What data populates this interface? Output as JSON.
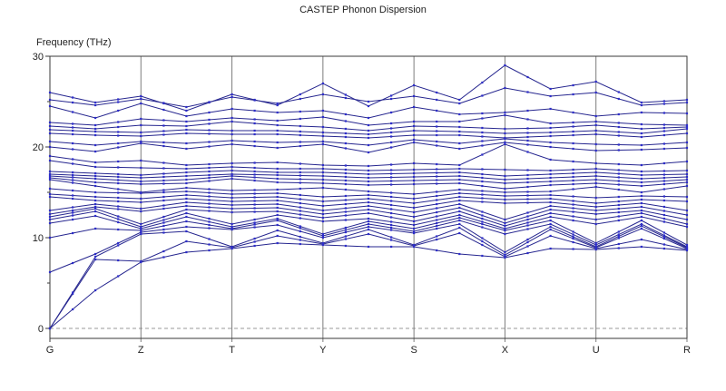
{
  "chart_data": {
    "type": "line",
    "title": "CASTEP Phonon Dispersion",
    "ylabel": "Frequency (THz)",
    "xlabel": "",
    "ylim": [
      0,
      30
    ],
    "yticks_major": [
      0,
      10,
      20,
      30
    ],
    "yticks_minor": [
      5,
      15,
      25
    ],
    "grid": "vertical lines at high-symmetry points",
    "legend": "none",
    "zero_line_style": "dashed horizontal at 0 THz",
    "x_symmetry_points": [
      "G",
      "Z",
      "T",
      "Y",
      "S",
      "X",
      "U",
      "R"
    ],
    "x_mapping": "each band has 15 values: even indices fall on the 8 symmetry points G,Z,T,Y,S,X,U,R; odd indices are segment midpoints",
    "bands_unit": "THz",
    "line_color": "#26268f",
    "marker_color": "#2d2dc9",
    "gridline_color": "#7d7d7d",
    "frame_color": "#3a3a3a",
    "zero_line_color": "#999999",
    "bands": [
      [
        0,
        4.2,
        7.3,
        8.4,
        8.8,
        9.4,
        9.2,
        9.0,
        9.0,
        8.2,
        7.8,
        8.8,
        8.7,
        9.0,
        8.6
      ],
      [
        0,
        7.6,
        7.4,
        9.6,
        8.9,
        10.2,
        9.3,
        10.4,
        9.1,
        10.5,
        7.9,
        10.2,
        8.8,
        9.8,
        8.7
      ],
      [
        0,
        7.9,
        10.4,
        10.7,
        9.0,
        10.8,
        9.4,
        10.9,
        9.2,
        11.1,
        8.1,
        10.9,
        8.9,
        11.0,
        8.8
      ],
      [
        6.2,
        8.2,
        10.6,
        11.2,
        10.9,
        11.4,
        10.0,
        11.2,
        10.5,
        11.5,
        8.4,
        11.2,
        9.0,
        11.3,
        8.9
      ],
      [
        10.0,
        11.0,
        10.8,
        11.8,
        11.0,
        11.9,
        10.2,
        11.5,
        10.7,
        11.9,
        10.4,
        11.5,
        9.2,
        11.5,
        9.0
      ],
      [
        11.6,
        12.4,
        11.0,
        12.3,
        11.2,
        12.1,
        10.4,
        11.8,
        11.0,
        12.2,
        10.8,
        11.9,
        9.4,
        11.9,
        9.2
      ],
      [
        12.0,
        12.9,
        11.2,
        12.7,
        11.5,
        12.5,
        11.8,
        12.1,
        11.4,
        12.5,
        11.0,
        12.3,
        11.5,
        12.3,
        11.2
      ],
      [
        12.3,
        13.2,
        11.5,
        13.1,
        12.8,
        12.9,
        12.2,
        12.7,
        11.8,
        12.9,
        11.3,
        12.7,
        12.0,
        12.7,
        11.5
      ],
      [
        12.6,
        13.4,
        12.9,
        13.5,
        13.2,
        13.3,
        12.6,
        13.1,
        12.3,
        13.3,
        11.6,
        13.1,
        12.6,
        13.0,
        12.0
      ],
      [
        13.0,
        13.7,
        13.2,
        13.9,
        13.6,
        13.7,
        13.0,
        13.5,
        12.8,
        13.7,
        12.0,
        13.5,
        13.0,
        13.4,
        12.5
      ],
      [
        14.5,
        14.1,
        13.9,
        14.3,
        14.0,
        14.1,
        13.5,
        13.9,
        13.3,
        14.1,
        13.8,
        13.9,
        13.4,
        13.8,
        13.0
      ],
      [
        14.8,
        14.5,
        14.3,
        14.7,
        14.4,
        14.5,
        14.0,
        14.3,
        13.8,
        14.5,
        14.2,
        14.3,
        13.8,
        14.2,
        14.0
      ],
      [
        15.4,
        15.0,
        14.9,
        15.1,
        14.8,
        14.9,
        14.5,
        14.7,
        14.3,
        14.9,
        14.6,
        14.7,
        14.4,
        14.6,
        14.5
      ],
      [
        16.4,
        15.7,
        15.0,
        15.5,
        15.2,
        15.3,
        15.5,
        15.1,
        14.8,
        15.3,
        15.0,
        15.1,
        15.6,
        15.0,
        15.7
      ],
      [
        16.6,
        16.1,
        15.9,
        16.0,
        16.5,
        16.1,
        16.0,
        15.8,
        15.9,
        16.0,
        15.4,
        15.8,
        16.0,
        15.7,
        16.1
      ],
      [
        16.8,
        16.5,
        16.2,
        16.4,
        16.8,
        16.5,
        16.4,
        16.2,
        16.3,
        16.4,
        16.0,
        16.2,
        16.4,
        16.1,
        16.4
      ],
      [
        17.0,
        16.8,
        16.6,
        16.8,
        17.0,
        16.9,
        16.8,
        16.6,
        16.7,
        16.8,
        16.4,
        16.6,
        16.8,
        16.5,
        16.7
      ],
      [
        17.3,
        17.1,
        16.9,
        17.2,
        17.4,
        17.2,
        17.2,
        17.0,
        17.1,
        17.2,
        16.8,
        17.0,
        17.2,
        16.9,
        17.0
      ],
      [
        18.5,
        17.8,
        17.7,
        17.6,
        17.8,
        17.6,
        17.6,
        17.4,
        17.5,
        17.6,
        17.5,
        17.4,
        17.6,
        17.3,
        17.4
      ],
      [
        19.0,
        18.3,
        18.5,
        18.0,
        18.2,
        18.3,
        18.0,
        17.9,
        18.2,
        18.0,
        20.3,
        18.6,
        18.2,
        18.0,
        18.4
      ],
      [
        20.0,
        19.5,
        20.4,
        19.8,
        20.3,
        19.9,
        20.3,
        19.4,
        20.5,
        19.8,
        20.5,
        20.0,
        19.6,
        19.7,
        19.9
      ],
      [
        20.6,
        20.2,
        20.6,
        20.4,
        20.7,
        20.5,
        20.6,
        20.2,
        20.8,
        20.4,
        20.9,
        20.5,
        20.3,
        20.2,
        20.5
      ],
      [
        21.5,
        21.3,
        21.2,
        21.5,
        21.4,
        21.4,
        21.2,
        21.0,
        21.3,
        21.3,
        21.0,
        21.2,
        21.4,
        21.1,
        21.5
      ],
      [
        21.9,
        21.7,
        21.6,
        21.9,
        21.8,
        21.8,
        21.6,
        21.4,
        21.8,
        21.7,
        21.5,
        21.6,
        21.8,
        21.5,
        22.0
      ],
      [
        22.3,
        22.0,
        22.4,
        22.3,
        22.8,
        22.4,
        22.2,
        21.8,
        22.3,
        22.2,
        22.0,
        22.1,
        22.4,
        22.0,
        22.2
      ],
      [
        22.7,
        22.4,
        23.1,
        22.8,
        23.2,
        22.9,
        23.3,
        22.4,
        22.8,
        22.8,
        23.5,
        22.6,
        22.8,
        22.5,
        22.4
      ],
      [
        24.5,
        23.2,
        24.8,
        23.4,
        24.2,
        23.8,
        24.0,
        23.2,
        24.4,
        23.6,
        23.8,
        24.2,
        23.4,
        23.8,
        23.7
      ],
      [
        25.2,
        24.6,
        25.3,
        24.4,
        25.5,
        24.8,
        25.8,
        25.0,
        25.6,
        24.8,
        26.5,
        25.6,
        26.0,
        24.6,
        24.9
      ],
      [
        26.0,
        24.9,
        25.6,
        24.0,
        25.8,
        24.6,
        27.0,
        24.5,
        26.8,
        25.2,
        29.0,
        26.4,
        27.2,
        24.9,
        25.2
      ]
    ]
  }
}
